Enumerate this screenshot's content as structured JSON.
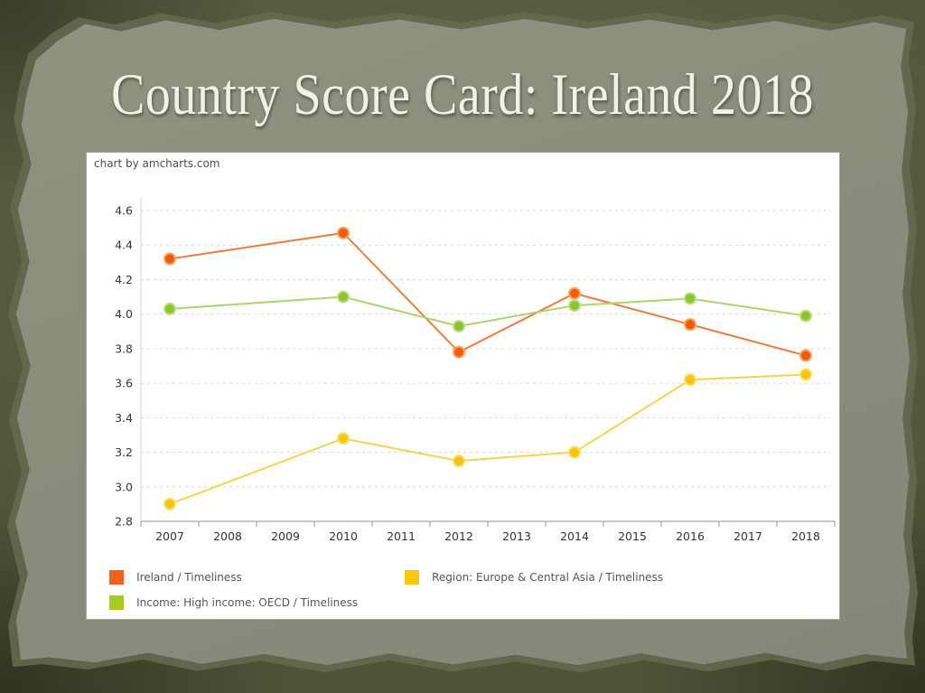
{
  "slide": {
    "title": "Country Score Card: Ireland 2018",
    "background_color": "#4e5438",
    "paper_color": "#8a8e7d",
    "title_color": "#f1f1e8"
  },
  "chart": {
    "attribution": "chart by amcharts.com",
    "panel_color": "#ffffff"
  },
  "chart_data": {
    "type": "line",
    "title": "",
    "xlabel": "",
    "ylabel": "",
    "categories": [
      "2007",
      "2008",
      "2009",
      "2010",
      "2011",
      "2012",
      "2013",
      "2014",
      "2015",
      "2016",
      "2017",
      "2018"
    ],
    "x": [
      2007,
      2010,
      2012,
      2014,
      2016,
      2018
    ],
    "series": [
      {
        "name": "Ireland / Timeliness",
        "values": [
          4.32,
          4.47,
          3.78,
          4.12,
          3.94,
          3.76
        ],
        "color": "#F1590B",
        "line_color": "#EC7C3E",
        "ring_color": "#F7A25E",
        "swatch_color": "#F1611B"
      },
      {
        "name": "Region: Europe & Central Asia / Timeliness",
        "values": [
          2.9,
          3.28,
          3.15,
          3.2,
          3.62,
          3.65
        ],
        "color": "#F6C50B",
        "line_color": "#F3D44C",
        "ring_color": "#F9DE6E",
        "swatch_color": "#F8C70E"
      },
      {
        "name": "Income: High income: OECD / Timeliness",
        "values": [
          4.03,
          4.1,
          3.93,
          4.05,
          4.09,
          3.99
        ],
        "color": "#8BC431",
        "line_color": "#AED470",
        "ring_color": "#BCDE84",
        "swatch_color": "#A3CC1D"
      }
    ],
    "ylim": [
      2.8,
      4.6
    ],
    "ytick_step": 0.2,
    "grid": "horizontal-dashed",
    "legend_position": "bottom"
  }
}
